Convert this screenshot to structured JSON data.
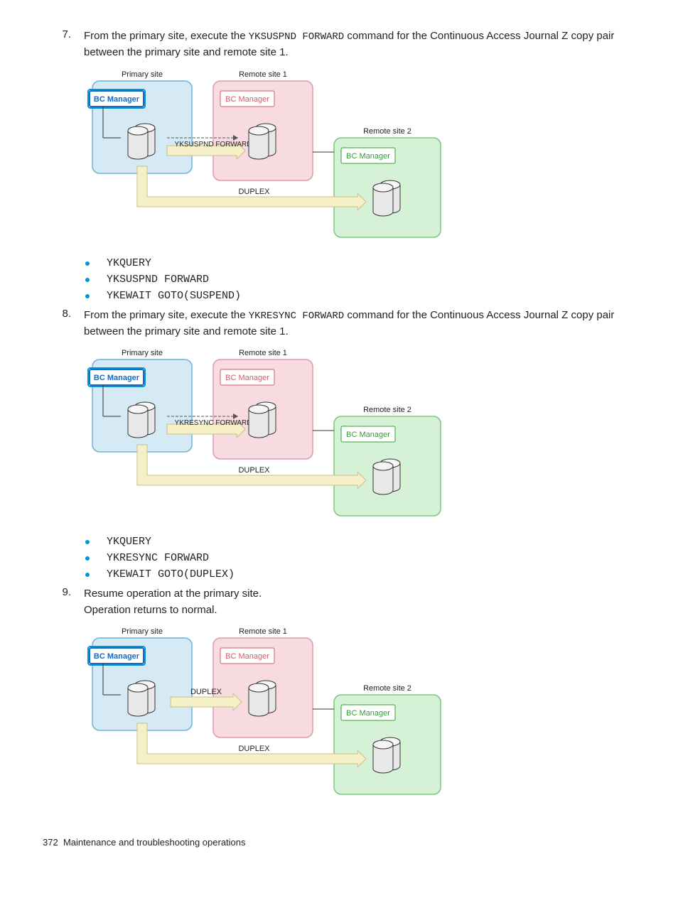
{
  "colors": {
    "accent": "#0096d6",
    "primary_fill": "#d6eaf5",
    "primary_stroke": "#6bb2d8",
    "remote1_fill": "#f8dbe0",
    "remote1_stroke": "#e09aa5",
    "remote2_fill": "#d6f2d6",
    "remote2_stroke": "#7bc77b",
    "bc_primary_fill": "#ffffff",
    "bc_primary_stroke": "#1a6bbf",
    "bc_remote_fill": "#ffffff",
    "bc_remote1_stroke": "#d15b6b",
    "bc_remote2_stroke": "#3a9b3a",
    "arrow_fill": "#f5f0c8",
    "arrow_stroke": "#c8c08a",
    "cyl_fill": "#e8e8e8",
    "cyl_stroke": "#333333",
    "text": "#222222"
  },
  "labels": {
    "primary_site": "Primary site",
    "remote_site_1": "Remote site 1",
    "remote_site_2": "Remote site 2",
    "bc_manager": "BC Manager",
    "duplex": "DUPLEX"
  },
  "steps": [
    {
      "num": "7.",
      "text_before": "From the primary site, execute the ",
      "code": "YKSUSPND FORWARD",
      "text_after": " command for the Continuous Access Journal Z copy pair between the primary site and remote site 1.",
      "diagram": {
        "middle_label": "YKSUSPND FORWARD",
        "bottom_label": "DUPLEX",
        "show_duplex_top": false
      },
      "bullets": [
        "YKQUERY",
        "YKSUSPND FORWARD",
        "YKEWAIT GOTO(SUSPEND)"
      ]
    },
    {
      "num": "8.",
      "text_before": "From the primary site, execute the ",
      "code": "YKRESYNC FORWARD",
      "text_after": " command for the Continuous Access Journal Z copy pair between the primary site and remote site 1.",
      "diagram": {
        "middle_label": "YKRESYNC FORWARD",
        "bottom_label": "DUPLEX",
        "show_duplex_top": false
      },
      "bullets": [
        "YKQUERY",
        "YKRESYNC FORWARD",
        "YKEWAIT GOTO(DUPLEX)"
      ]
    },
    {
      "num": "9.",
      "text_before": "Resume operation at the primary site.",
      "code": "",
      "text_after": "",
      "text_line2": "Operation returns to normal.",
      "diagram": {
        "middle_label": "DUPLEX",
        "bottom_label": "DUPLEX",
        "show_duplex_top": true
      },
      "bullets": []
    }
  ],
  "footer": {
    "page": "372",
    "title": "Maintenance and troubleshooting operations"
  }
}
